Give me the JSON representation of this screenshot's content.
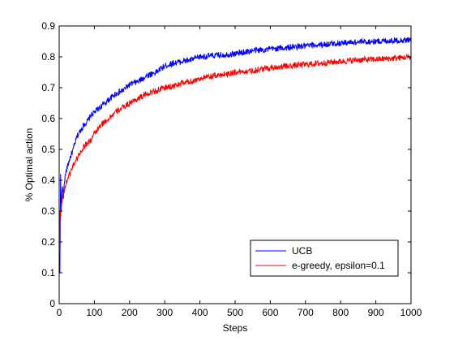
{
  "chart_data": {
    "type": "line",
    "title": "",
    "xlabel": "Steps",
    "ylabel": "% Optimal action",
    "xlim": [
      0,
      1000
    ],
    "ylim": [
      0,
      0.9
    ],
    "xticks": [
      0,
      100,
      200,
      300,
      400,
      500,
      600,
      700,
      800,
      900,
      1000
    ],
    "yticks": [
      0,
      0.1,
      0.2,
      0.3,
      0.4,
      0.5,
      0.6,
      0.7,
      0.8,
      0.9
    ],
    "xtick_labels": [
      "0",
      "100",
      "200",
      "300",
      "400",
      "500",
      "600",
      "700",
      "800",
      "900",
      "1000"
    ],
    "ytick_labels": [
      "0",
      "0.1",
      "0.2",
      "0.3",
      "0.4",
      "0.5",
      "0.6",
      "0.7",
      "0.8",
      "0.9"
    ],
    "grid": false,
    "legend_position": "lower-right",
    "series": [
      {
        "name": "UCB",
        "color": "#0000ff",
        "x": [
          1,
          2,
          4,
          6,
          8,
          10,
          12,
          15,
          20,
          25,
          30,
          40,
          50,
          60,
          70,
          80,
          90,
          100,
          120,
          140,
          160,
          180,
          200,
          225,
          250,
          275,
          300,
          325,
          350,
          375,
          400,
          450,
          500,
          550,
          600,
          650,
          700,
          750,
          800,
          850,
          900,
          950,
          1000
        ],
        "y": [
          0.1,
          0.1,
          0.42,
          0.3,
          0.36,
          0.38,
          0.34,
          0.4,
          0.43,
          0.45,
          0.47,
          0.5,
          0.54,
          0.56,
          0.58,
          0.59,
          0.61,
          0.62,
          0.64,
          0.66,
          0.68,
          0.69,
          0.71,
          0.72,
          0.74,
          0.75,
          0.77,
          0.78,
          0.785,
          0.79,
          0.8,
          0.805,
          0.81,
          0.82,
          0.825,
          0.83,
          0.835,
          0.84,
          0.845,
          0.848,
          0.85,
          0.853,
          0.855
        ]
      },
      {
        "name": "e-greedy, epsilon=0.1",
        "color": "#ff0000",
        "x": [
          1,
          2,
          4,
          6,
          8,
          10,
          15,
          20,
          25,
          30,
          40,
          50,
          60,
          70,
          80,
          90,
          100,
          120,
          140,
          160,
          180,
          200,
          225,
          250,
          275,
          300,
          325,
          350,
          375,
          400,
          450,
          500,
          550,
          600,
          650,
          700,
          750,
          800,
          850,
          900,
          950,
          1000
        ],
        "y": [
          0.16,
          0.3,
          0.28,
          0.32,
          0.33,
          0.35,
          0.37,
          0.39,
          0.41,
          0.42,
          0.45,
          0.47,
          0.49,
          0.51,
          0.52,
          0.53,
          0.55,
          0.58,
          0.6,
          0.62,
          0.635,
          0.65,
          0.665,
          0.68,
          0.69,
          0.7,
          0.705,
          0.715,
          0.72,
          0.73,
          0.74,
          0.75,
          0.755,
          0.765,
          0.77,
          0.775,
          0.78,
          0.785,
          0.79,
          0.792,
          0.795,
          0.8
        ]
      }
    ]
  }
}
